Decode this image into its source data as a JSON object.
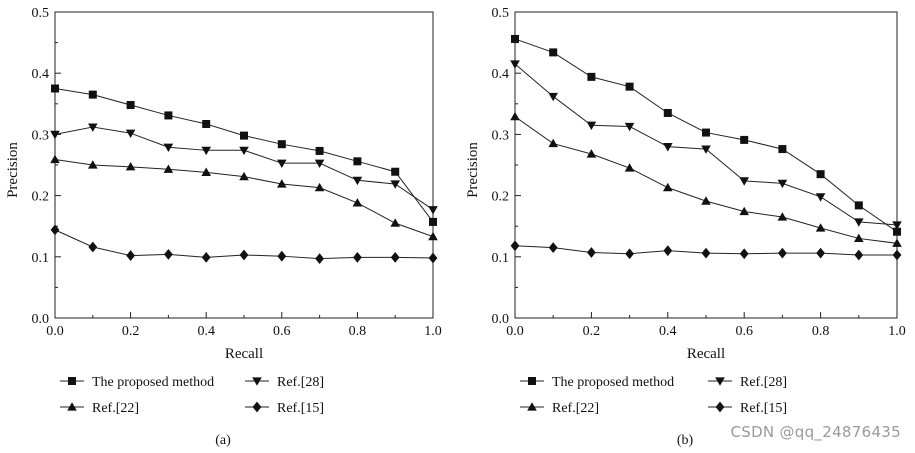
{
  "watermark": "CSDN @qq_24876435",
  "chart_data": [
    {
      "type": "line",
      "panel_label": "(a)",
      "xlabel": "Recall",
      "ylabel": "Precision",
      "xlim": [
        0,
        1
      ],
      "ylim": [
        0,
        0.5
      ],
      "xticks": [
        "0.0",
        "0.2",
        "0.4",
        "0.6",
        "0.8",
        "1.0"
      ],
      "yticks": [
        "0.0",
        "0.1",
        "0.2",
        "0.3",
        "0.4",
        "0.5"
      ],
      "x": [
        0.0,
        0.1,
        0.2,
        0.3,
        0.4,
        0.5,
        0.6,
        0.7,
        0.8,
        0.9,
        1.0
      ],
      "series": [
        {
          "name": "The proposed method",
          "marker": "square",
          "values": [
            0.375,
            0.365,
            0.348,
            0.331,
            0.317,
            0.298,
            0.284,
            0.273,
            0.256,
            0.239,
            0.157
          ]
        },
        {
          "name": "Ref.[28]",
          "marker": "triangle-down",
          "values": [
            0.3,
            0.312,
            0.302,
            0.279,
            0.274,
            0.274,
            0.253,
            0.253,
            0.225,
            0.219,
            0.177
          ]
        },
        {
          "name": "Ref.[22]",
          "marker": "triangle-up",
          "values": [
            0.259,
            0.25,
            0.247,
            0.243,
            0.238,
            0.231,
            0.219,
            0.213,
            0.188,
            0.155,
            0.133
          ]
        },
        {
          "name": "Ref.[15]",
          "marker": "diamond",
          "values": [
            0.144,
            0.116,
            0.102,
            0.104,
            0.099,
            0.103,
            0.101,
            0.097,
            0.099,
            0.099,
            0.098
          ]
        }
      ]
    },
    {
      "type": "line",
      "panel_label": "(b)",
      "xlabel": "Recall",
      "ylabel": "Precision",
      "xlim": [
        0,
        1
      ],
      "ylim": [
        0,
        0.5
      ],
      "xticks": [
        "0.0",
        "0.2",
        "0.4",
        "0.6",
        "0.8",
        "1.0"
      ],
      "yticks": [
        "0.0",
        "0.1",
        "0.2",
        "0.3",
        "0.4",
        "0.5"
      ],
      "x": [
        0.0,
        0.1,
        0.2,
        0.3,
        0.4,
        0.5,
        0.6,
        0.7,
        0.8,
        0.9,
        1.0
      ],
      "series": [
        {
          "name": "The proposed method",
          "marker": "square",
          "values": [
            0.456,
            0.434,
            0.394,
            0.378,
            0.335,
            0.303,
            0.291,
            0.276,
            0.235,
            0.184,
            0.141
          ]
        },
        {
          "name": "Ref.[28]",
          "marker": "triangle-down",
          "values": [
            0.415,
            0.362,
            0.315,
            0.313,
            0.28,
            0.276,
            0.224,
            0.22,
            0.198,
            0.157,
            0.152
          ]
        },
        {
          "name": "Ref.[22]",
          "marker": "triangle-up",
          "values": [
            0.329,
            0.285,
            0.268,
            0.245,
            0.213,
            0.191,
            0.174,
            0.165,
            0.147,
            0.13,
            0.122
          ]
        },
        {
          "name": "Ref.[15]",
          "marker": "diamond",
          "values": [
            0.118,
            0.115,
            0.107,
            0.105,
            0.11,
            0.106,
            0.105,
            0.106,
            0.106,
            0.103,
            0.103
          ]
        }
      ]
    }
  ]
}
